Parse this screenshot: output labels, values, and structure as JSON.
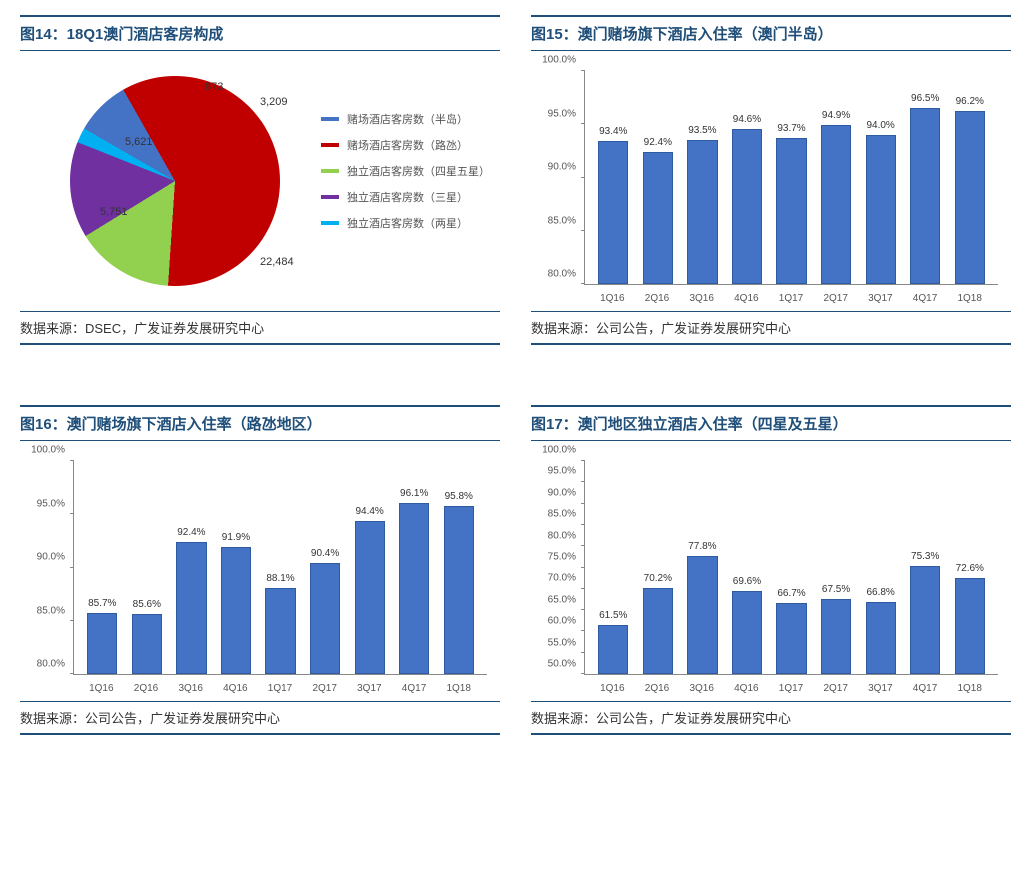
{
  "panels": {
    "chart14": {
      "title": "图14：18Q1澳门酒店客房构成",
      "source": "数据来源：DSEC，广发证券发展研究中心",
      "type": "pie",
      "slices": [
        {
          "label": "赌场酒店客房数（半岛）",
          "value": 3209,
          "color": "#4472c4"
        },
        {
          "label": "赌场酒店客房数（路氹）",
          "value": 22484,
          "color": "#c00000"
        },
        {
          "label": "独立酒店客房数（四星五星）",
          "value": 5751,
          "color": "#92d050"
        },
        {
          "label": "独立酒店客房数（三星）",
          "value": 5621,
          "color": "#7030a0"
        },
        {
          "label": "独立酒店客房数（两星）",
          "value": 873,
          "color": "#00b0f0"
        }
      ],
      "slice_labels": [
        "3,209",
        "22,484",
        "5,751",
        "5,621",
        "873"
      ],
      "background_color": "#ffffff"
    },
    "chart15": {
      "title": "图15：澳门赌场旗下酒店入住率（澳门半岛）",
      "source": "数据来源：公司公告，广发证券发展研究中心",
      "type": "bar",
      "categories": [
        "1Q16",
        "2Q16",
        "3Q16",
        "4Q16",
        "1Q17",
        "2Q17",
        "3Q17",
        "4Q17",
        "1Q18"
      ],
      "values": [
        93.4,
        92.4,
        93.5,
        94.6,
        93.7,
        94.9,
        94.0,
        96.5,
        96.2
      ],
      "value_labels": [
        "93.4%",
        "92.4%",
        "93.5%",
        "94.6%",
        "93.7%",
        "94.9%",
        "94.0%",
        "96.5%",
        "96.2%"
      ],
      "bar_color": "#4472c4",
      "bar_border": "#2e5aa0",
      "ylim": [
        80,
        100
      ],
      "ytick_step": 5,
      "ytick_fmt": "pct1",
      "grid_color": "#888888",
      "label_fontsize": 10
    },
    "chart16": {
      "title": "图16：澳门赌场旗下酒店入住率（路氹地区）",
      "source": "数据来源：公司公告，广发证券发展研究中心",
      "type": "bar",
      "categories": [
        "1Q16",
        "2Q16",
        "3Q16",
        "4Q16",
        "1Q17",
        "2Q17",
        "3Q17",
        "4Q17",
        "1Q18"
      ],
      "values": [
        85.7,
        85.6,
        92.4,
        91.9,
        88.1,
        90.4,
        94.4,
        96.1,
        95.8
      ],
      "value_labels": [
        "85.7%",
        "85.6%",
        "92.4%",
        "91.9%",
        "88.1%",
        "90.4%",
        "94.4%",
        "96.1%",
        "95.8%"
      ],
      "bar_color": "#4472c4",
      "bar_border": "#2e5aa0",
      "ylim": [
        80,
        100
      ],
      "ytick_step": 5,
      "ytick_fmt": "pct1",
      "grid_color": "#888888",
      "label_fontsize": 10
    },
    "chart17": {
      "title": "图17：澳门地区独立酒店入住率（四星及五星）",
      "source": "数据来源：公司公告，广发证券发展研究中心",
      "type": "bar",
      "categories": [
        "1Q16",
        "2Q16",
        "3Q16",
        "4Q16",
        "1Q17",
        "2Q17",
        "3Q17",
        "4Q17",
        "1Q18"
      ],
      "values": [
        61.5,
        70.2,
        77.8,
        69.6,
        66.7,
        67.5,
        66.8,
        75.3,
        72.6
      ],
      "value_labels": [
        "61.5%",
        "70.2%",
        "77.8%",
        "69.6%",
        "66.7%",
        "67.5%",
        "66.8%",
        "75.3%",
        "72.6%"
      ],
      "bar_color": "#4472c4",
      "bar_border": "#2e5aa0",
      "ylim": [
        50,
        100
      ],
      "ytick_step": 5,
      "ytick_fmt": "pct1",
      "grid_color": "#888888",
      "label_fontsize": 10
    }
  }
}
